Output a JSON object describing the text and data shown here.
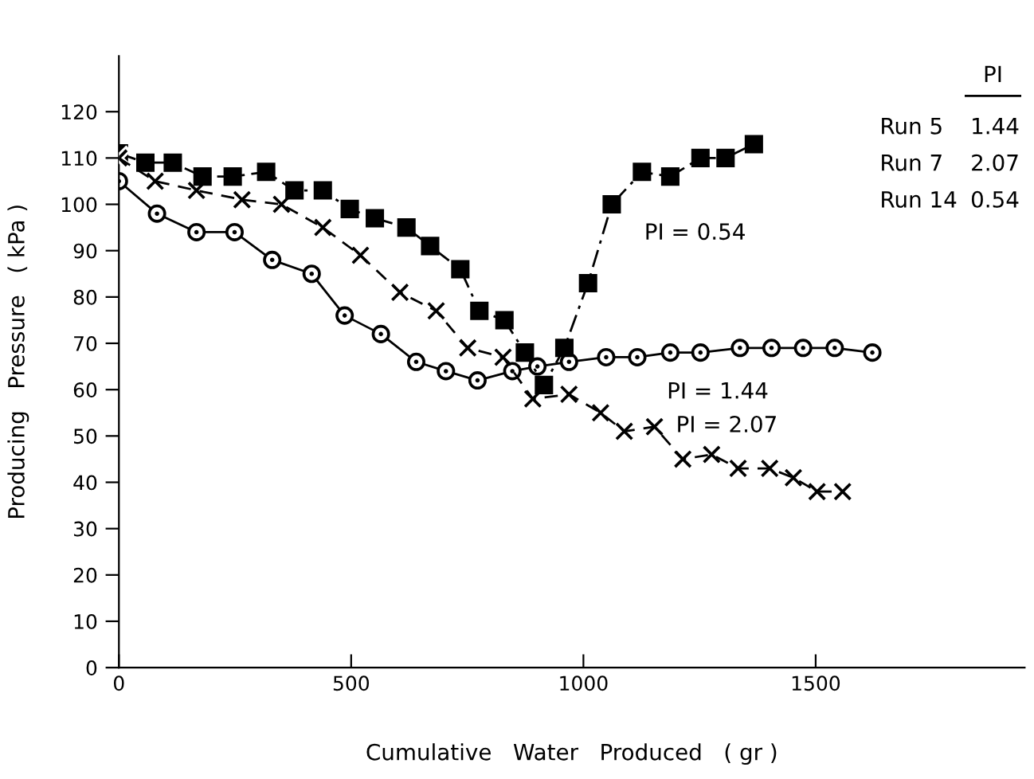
{
  "chart_data": {
    "type": "line",
    "xlabel": "Cumulative   Water   Produced   ( gr )",
    "ylabel": "Producing   Pressure   ( kPa )",
    "xlim": [
      0,
      1950
    ],
    "ylim": [
      0,
      132
    ],
    "xticks": [
      0,
      500,
      1000,
      1500
    ],
    "yticks": [
      0,
      10,
      20,
      30,
      40,
      50,
      60,
      70,
      80,
      90,
      100,
      110,
      120
    ],
    "grid": false,
    "legend": false,
    "series": [
      {
        "color": "#000000",
        "marker": "circle",
        "line_style": "solid",
        "x": [
          0,
          82,
          167,
          249,
          330,
          415,
          486,
          564,
          640,
          704,
          772,
          847,
          901,
          969,
          1049,
          1116,
          1187,
          1252,
          1337,
          1405,
          1473,
          1541,
          1622
        ],
        "values": [
          105,
          98,
          94,
          94,
          88,
          85,
          76,
          72,
          66,
          64,
          62,
          64,
          65,
          66,
          67,
          67,
          68,
          68,
          69,
          69,
          69,
          69,
          68
        ]
      },
      {
        "color": "#000000",
        "marker": "cross",
        "line_style": "dashed",
        "x": [
          0,
          78,
          167,
          265,
          350,
          439,
          520,
          605,
          683,
          751,
          827,
          891,
          969,
          1037,
          1088,
          1153,
          1214,
          1276,
          1333,
          1401,
          1452,
          1503,
          1558
        ],
        "values": [
          110,
          105,
          103,
          101,
          100,
          95,
          89,
          81,
          77,
          69,
          67,
          58,
          59,
          55,
          51,
          52,
          45,
          46,
          43,
          43,
          41,
          38,
          38
        ]
      },
      {
        "color": "#000000",
        "marker": "square",
        "line_style": "dashdot",
        "x": [
          0,
          57,
          116,
          180,
          245,
          317,
          378,
          439,
          497,
          551,
          619,
          670,
          735,
          776,
          830,
          874,
          915,
          959,
          1010,
          1061,
          1126,
          1187,
          1252,
          1306,
          1367
        ],
        "values": [
          111,
          109,
          109,
          106,
          106,
          107,
          103,
          103,
          99,
          97,
          95,
          91,
          86,
          77,
          75,
          68,
          61,
          69,
          83,
          100,
          107,
          106,
          110,
          110,
          113
        ]
      }
    ],
    "annotations": [
      "PI = 0.54",
      "PI = 1.44",
      "PI = 2.07",
      "PI",
      "Run 5",
      "1.44",
      "Run 7",
      "2.07",
      "Run 14",
      "0.54"
    ]
  }
}
